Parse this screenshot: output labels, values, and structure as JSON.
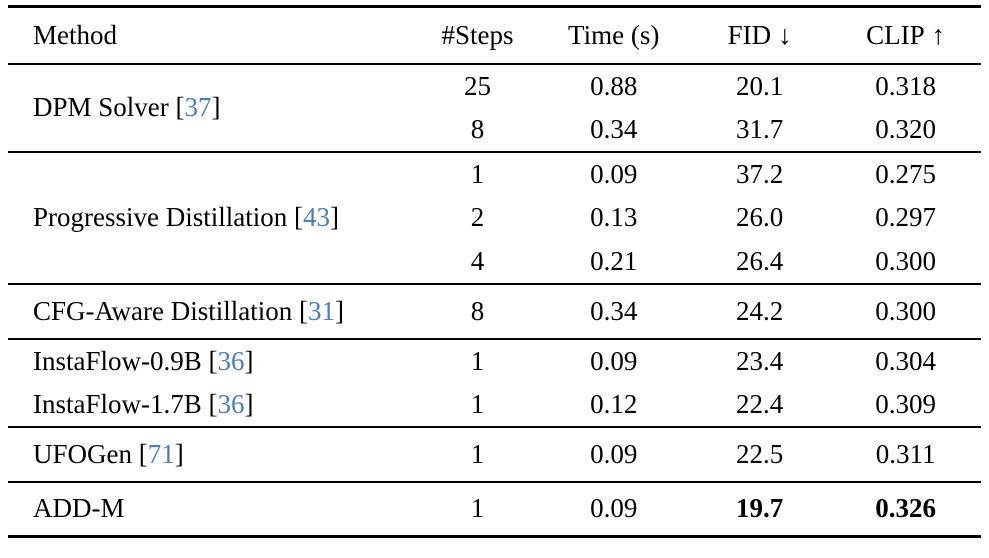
{
  "colors": {
    "background": "#ffffff",
    "text": "#000000",
    "rule": "#000000",
    "citation_blue": "#4a7cbf"
  },
  "table": {
    "columns": [
      {
        "key": "method",
        "label": "Method",
        "align": "left"
      },
      {
        "key": "steps",
        "label": "#Steps",
        "align": "center"
      },
      {
        "key": "time",
        "label": "Time (s)",
        "align": "center"
      },
      {
        "key": "fid",
        "label": "FID",
        "arrow": "↓",
        "arrow_name": "down-arrow-icon",
        "align": "center"
      },
      {
        "key": "clip",
        "label": "CLIP",
        "arrow": "↑",
        "arrow_name": "up-arrow-icon",
        "align": "center"
      }
    ],
    "sections": [
      {
        "group_method": {
          "name": "DPM Solver",
          "cite": "37"
        },
        "rows": [
          {
            "steps": "25",
            "time": "0.88",
            "fid": "20.1",
            "clip": "0.318"
          },
          {
            "steps": "8",
            "time": "0.34",
            "fid": "31.7",
            "clip": "0.320"
          }
        ]
      },
      {
        "group_method": {
          "name": "Progressive Distillation",
          "cite": "43"
        },
        "rows": [
          {
            "steps": "1",
            "time": "0.09",
            "fid": "37.2",
            "clip": "0.275"
          },
          {
            "steps": "2",
            "time": "0.13",
            "fid": "26.0",
            "clip": "0.297"
          },
          {
            "steps": "4",
            "time": "0.21",
            "fid": "26.4",
            "clip": "0.300"
          }
        ]
      },
      {
        "group_method": {
          "name": "CFG-Aware Distillation",
          "cite": "31"
        },
        "rows": [
          {
            "steps": "8",
            "time": "0.34",
            "fid": "24.2",
            "clip": "0.300"
          }
        ]
      },
      {
        "rows": [
          {
            "method": {
              "name": "InstaFlow-0.9B",
              "cite": "36"
            },
            "steps": "1",
            "time": "0.09",
            "fid": "23.4",
            "clip": "0.304"
          },
          {
            "method": {
              "name": "InstaFlow-1.7B",
              "cite": "36"
            },
            "steps": "1",
            "time": "0.12",
            "fid": "22.4",
            "clip": "0.309"
          }
        ]
      },
      {
        "group_method": {
          "name": "UFOGen",
          "cite": "71"
        },
        "rows": [
          {
            "steps": "1",
            "time": "0.09",
            "fid": "22.5",
            "clip": "0.311"
          }
        ]
      },
      {
        "group_method": {
          "name": "ADD-M"
        },
        "rows": [
          {
            "steps": "1",
            "time": "0.09",
            "fid": "19.7",
            "clip": "0.326",
            "bold": [
              "fid",
              "clip"
            ]
          }
        ]
      }
    ]
  }
}
